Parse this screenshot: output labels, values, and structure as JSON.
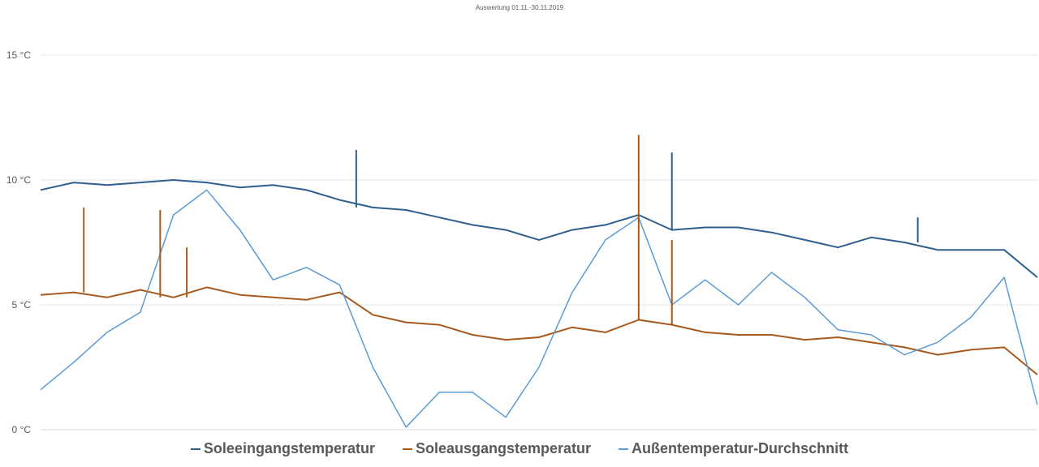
{
  "chart_data": {
    "type": "line",
    "title": "Auswertung 01.11.-30.11.2019",
    "xlabel": "",
    "ylabel": "",
    "x": [
      1,
      2,
      3,
      4,
      5,
      6,
      7,
      8,
      9,
      10,
      11,
      12,
      13,
      14,
      15,
      16,
      17,
      18,
      19,
      20,
      21,
      22,
      23,
      24,
      25,
      26,
      27,
      28,
      29,
      30,
      31
    ],
    "x_tick_labels_visible": false,
    "ylim": [
      0,
      15
    ],
    "yticks": [
      0,
      5,
      10,
      15
    ],
    "ytick_labels": [
      "0 °C",
      "5 °C",
      "10 °C",
      "15 °C"
    ],
    "grid": true,
    "legend": "bottom",
    "series": [
      {
        "name": "Soleeingangstemperatur",
        "color": "#2E5F8E",
        "values": [
          9.6,
          9.9,
          9.8,
          9.9,
          10.0,
          9.9,
          9.7,
          9.8,
          9.6,
          9.2,
          8.9,
          8.8,
          8.5,
          8.2,
          8.0,
          7.6,
          8.0,
          8.2,
          8.6,
          8.0,
          8.1,
          8.1,
          7.9,
          7.6,
          7.3,
          7.7,
          7.5,
          7.2,
          7.2,
          7.2,
          6.1
        ]
      },
      {
        "name": "Soleausgangstemperatur",
        "color": "#A85A1E",
        "values": [
          5.4,
          5.5,
          5.3,
          5.6,
          5.3,
          5.7,
          5.4,
          5.3,
          5.2,
          5.5,
          4.6,
          4.3,
          4.2,
          3.8,
          3.6,
          3.7,
          4.1,
          3.9,
          4.4,
          4.2,
          3.9,
          3.8,
          3.8,
          3.6,
          3.7,
          3.5,
          3.3,
          3.0,
          3.2,
          3.3,
          2.2
        ]
      },
      {
        "name": "Außentemperatur-Durchschnitt",
        "color": "#5B9BD5",
        "values": [
          1.6,
          2.7,
          3.9,
          4.7,
          8.6,
          9.6,
          8.0,
          6.0,
          6.5,
          5.8,
          2.5,
          0.1,
          1.5,
          1.5,
          0.5,
          2.5,
          5.5,
          7.6,
          8.5,
          5.0,
          6.0,
          5.0,
          6.3,
          5.3,
          4.0,
          3.8,
          3.0,
          3.5,
          4.5,
          6.1,
          1.0
        ]
      }
    ],
    "spikes": [
      {
        "series": 1,
        "x": 2.3,
        "value": 8.9
      },
      {
        "series": 1,
        "x": 4.6,
        "value": 8.8
      },
      {
        "series": 1,
        "x": 5.4,
        "value": 7.3
      },
      {
        "series": 1,
        "x": 19.0,
        "value": 11.8
      },
      {
        "series": 1,
        "x": 20.0,
        "value": 7.6
      },
      {
        "series": 0,
        "x": 10.5,
        "value": 11.2
      },
      {
        "series": 0,
        "x": 20.0,
        "value": 11.1
      },
      {
        "series": 0,
        "x": 27.4,
        "value": 8.5
      }
    ]
  }
}
